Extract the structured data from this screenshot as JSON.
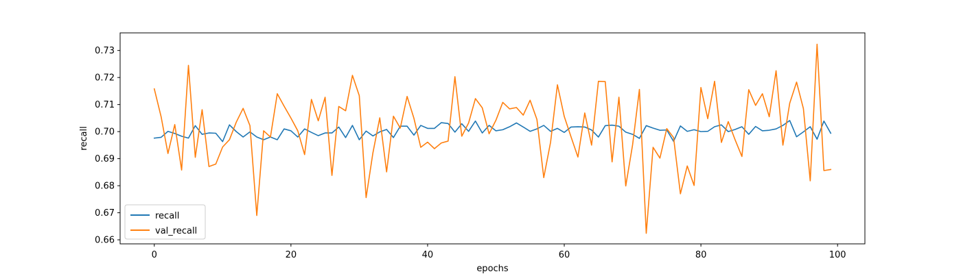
{
  "chart_data": {
    "type": "line",
    "xlabel": "epochs",
    "ylabel": "recall",
    "xlim": [
      -5,
      104
    ],
    "ylim": [
      0.6585,
      0.7365
    ],
    "xticks": [
      0,
      20,
      40,
      60,
      80,
      100
    ],
    "yticks": [
      0.66,
      0.67,
      0.68,
      0.69,
      0.7,
      0.71,
      0.72,
      0.73
    ],
    "grid": false,
    "legend": "lower-left",
    "x": [
      0,
      1,
      2,
      3,
      4,
      5,
      6,
      7,
      8,
      9,
      10,
      11,
      12,
      13,
      14,
      15,
      16,
      17,
      18,
      19,
      20,
      21,
      22,
      23,
      24,
      25,
      26,
      27,
      28,
      29,
      30,
      31,
      32,
      33,
      34,
      35,
      36,
      37,
      38,
      39,
      40,
      41,
      42,
      43,
      44,
      45,
      46,
      47,
      48,
      49,
      50,
      51,
      52,
      53,
      54,
      55,
      56,
      57,
      58,
      59,
      60,
      61,
      62,
      63,
      64,
      65,
      66,
      67,
      68,
      69,
      70,
      71,
      72,
      73,
      74,
      75,
      76,
      77,
      78,
      79,
      80,
      81,
      82,
      83,
      84,
      85,
      86,
      87,
      88,
      89,
      90,
      91,
      92,
      93,
      94,
      95,
      96,
      97,
      98,
      99
    ],
    "series": [
      {
        "name": "recall",
        "color": "#1f77b4",
        "values": [
          0.6976,
          0.6979,
          0.7001,
          0.6993,
          0.6983,
          0.6976,
          0.7022,
          0.699,
          0.6995,
          0.6994,
          0.6963,
          0.7025,
          0.7,
          0.698,
          0.6999,
          0.698,
          0.697,
          0.698,
          0.697,
          0.701,
          0.7003,
          0.698,
          0.701,
          0.6997,
          0.6985,
          0.6995,
          0.6995,
          0.7017,
          0.6978,
          0.7023,
          0.697,
          0.7002,
          0.6984,
          0.6999,
          0.7008,
          0.6978,
          0.702,
          0.702,
          0.6987,
          0.7023,
          0.7012,
          0.7012,
          0.7033,
          0.703,
          0.6998,
          0.7029,
          0.7001,
          0.7039,
          0.6995,
          0.7023,
          0.7003,
          0.7007,
          0.7018,
          0.7032,
          0.7017,
          0.7001,
          0.701,
          0.7023,
          0.7001,
          0.7012,
          0.6997,
          0.7017,
          0.7018,
          0.7017,
          0.7006,
          0.698,
          0.7022,
          0.7024,
          0.702,
          0.6998,
          0.699,
          0.6975,
          0.7022,
          0.7013,
          0.7005,
          0.7006,
          0.6964,
          0.7021,
          0.7001,
          0.7007,
          0.7,
          0.7001,
          0.7018,
          0.7025,
          0.7,
          0.7008,
          0.7018,
          0.699,
          0.7019,
          0.7003,
          0.7005,
          0.701,
          0.7023,
          0.7041,
          0.6981,
          0.6999,
          0.7018,
          0.6972,
          0.7039,
          0.6994
        ]
      },
      {
        "name": "val_recall",
        "color": "#ff7f0e",
        "values": [
          0.7158,
          0.7055,
          0.6919,
          0.7026,
          0.6858,
          0.7245,
          0.6905,
          0.7081,
          0.6871,
          0.688,
          0.6943,
          0.697,
          0.7035,
          0.7086,
          0.7022,
          0.669,
          0.7003,
          0.698,
          0.714,
          0.7094,
          0.705,
          0.7003,
          0.6915,
          0.7119,
          0.704,
          0.7127,
          0.6838,
          0.7093,
          0.7077,
          0.7208,
          0.7133,
          0.6756,
          0.6922,
          0.7051,
          0.6851,
          0.7057,
          0.7013,
          0.713,
          0.7049,
          0.6942,
          0.6961,
          0.6937,
          0.6958,
          0.6965,
          0.7203,
          0.6983,
          0.7032,
          0.7122,
          0.7088,
          0.6992,
          0.7042,
          0.7108,
          0.7084,
          0.7089,
          0.7061,
          0.7116,
          0.7045,
          0.683,
          0.6961,
          0.7173,
          0.7056,
          0.698,
          0.6906,
          0.7069,
          0.695,
          0.7186,
          0.7185,
          0.6888,
          0.7127,
          0.6799,
          0.6951,
          0.7156,
          0.6624,
          0.6942,
          0.6902,
          0.7011,
          0.6978,
          0.677,
          0.6873,
          0.6801,
          0.7163,
          0.7048,
          0.7186,
          0.696,
          0.7037,
          0.697,
          0.6908,
          0.7155,
          0.7097,
          0.714,
          0.7055,
          0.7225,
          0.695,
          0.7105,
          0.7183,
          0.7085,
          0.6818,
          0.7323,
          0.6856,
          0.686
        ]
      }
    ]
  }
}
